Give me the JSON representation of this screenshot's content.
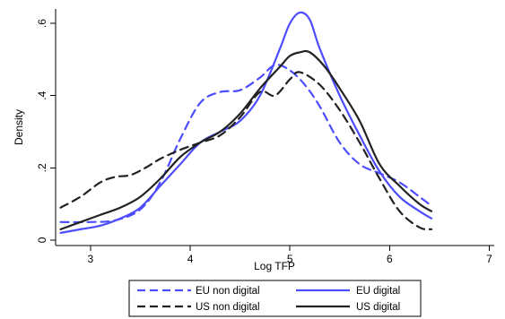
{
  "chart_data": {
    "type": "line",
    "title": "",
    "xlabel": "Log TFP",
    "ylabel": "Density",
    "xlim": [
      2.65,
      7.05
    ],
    "ylim": [
      -0.015,
      0.64
    ],
    "xticks": [
      3,
      4,
      5,
      6,
      7
    ],
    "xtick_labels": [
      "3",
      "4",
      "5",
      "6",
      "7"
    ],
    "yticks": [
      0,
      0.2,
      0.4,
      0.6
    ],
    "ytick_labels": [
      "0",
      ".2",
      ".4",
      ".6"
    ],
    "grid": false,
    "legend_position": "bottom",
    "series": [
      {
        "name": "EU non digital",
        "color": "#4d4dff",
        "dash": "dashed",
        "x": [
          2.7,
          3.0,
          3.25,
          3.5,
          3.7,
          3.9,
          4.1,
          4.3,
          4.5,
          4.7,
          4.85,
          5.0,
          5.15,
          5.3,
          5.5,
          5.7,
          5.9,
          6.1,
          6.3,
          6.42
        ],
        "y": [
          0.05,
          0.05,
          0.055,
          0.085,
          0.16,
          0.28,
          0.38,
          0.41,
          0.415,
          0.45,
          0.485,
          0.47,
          0.43,
          0.37,
          0.27,
          0.21,
          0.185,
          0.16,
          0.12,
          0.095
        ]
      },
      {
        "name": "EU digital",
        "color": "#4d4dff",
        "dash": "solid",
        "x": [
          2.7,
          2.9,
          3.1,
          3.3,
          3.5,
          3.7,
          3.9,
          4.1,
          4.3,
          4.5,
          4.7,
          4.9,
          5.0,
          5.1,
          5.2,
          5.3,
          5.5,
          5.7,
          5.9,
          6.1,
          6.3,
          6.42
        ],
        "y": [
          0.02,
          0.03,
          0.04,
          0.06,
          0.09,
          0.15,
          0.21,
          0.27,
          0.3,
          0.33,
          0.4,
          0.53,
          0.6,
          0.63,
          0.61,
          0.53,
          0.4,
          0.29,
          0.19,
          0.12,
          0.08,
          0.06
        ]
      },
      {
        "name": "US non digital",
        "color": "#222222",
        "dash": "dashed",
        "x": [
          2.7,
          2.9,
          3.1,
          3.25,
          3.4,
          3.55,
          3.7,
          3.9,
          4.1,
          4.3,
          4.5,
          4.7,
          4.85,
          5.0,
          5.1,
          5.3,
          5.5,
          5.7,
          5.9,
          6.1,
          6.3,
          6.42
        ],
        "y": [
          0.09,
          0.12,
          0.16,
          0.175,
          0.18,
          0.2,
          0.225,
          0.25,
          0.27,
          0.29,
          0.34,
          0.41,
          0.4,
          0.445,
          0.465,
          0.43,
          0.36,
          0.27,
          0.17,
          0.08,
          0.035,
          0.03
        ]
      },
      {
        "name": "US digital",
        "color": "#222222",
        "dash": "solid",
        "x": [
          2.7,
          2.9,
          3.1,
          3.3,
          3.5,
          3.7,
          3.9,
          4.1,
          4.3,
          4.5,
          4.7,
          4.9,
          5.0,
          5.1,
          5.2,
          5.35,
          5.5,
          5.7,
          5.9,
          6.1,
          6.3,
          6.42
        ],
        "y": [
          0.03,
          0.05,
          0.07,
          0.09,
          0.12,
          0.17,
          0.23,
          0.27,
          0.3,
          0.35,
          0.42,
          0.48,
          0.51,
          0.52,
          0.52,
          0.48,
          0.42,
          0.33,
          0.21,
          0.15,
          0.1,
          0.08
        ]
      }
    ]
  }
}
